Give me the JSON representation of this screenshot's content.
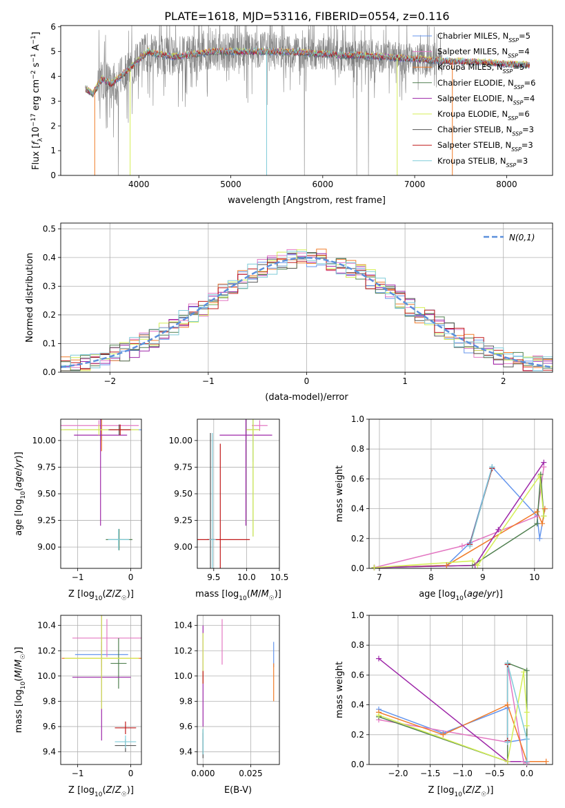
{
  "figure": {
    "title": "PLATE=1618, MJD=53116, FIBERID=0554, z=0.116"
  },
  "model_colors": [
    "#6495ed",
    "#e377c2",
    "#f07b28",
    "#4f7f4f",
    "#9d26a8",
    "#d4ee55",
    "#555555",
    "#c01818",
    "#7ecbd8"
  ],
  "chart_data": [
    {
      "id": "spectrum",
      "type": "line",
      "xlabel": "wavelength [Angstrom, rest frame]",
      "ylabel": "Flux [f_λ 10^-17 erg cm^-2 s^-1 A^-1]",
      "xlim": [
        3150,
        8500
      ],
      "ylim": [
        0,
        6.05
      ],
      "xticks": [
        4000,
        5000,
        6000,
        7000,
        8000
      ],
      "yticks": [
        0,
        1,
        2,
        3,
        4,
        5,
        6
      ],
      "grid": false,
      "legend": "upper-right",
      "data_color": "#808080",
      "data_range": [
        3420,
        8250
      ],
      "continuum": {
        "x": [
          3420,
          3500,
          3600,
          3700,
          3800,
          3900,
          4000,
          4100,
          4200,
          4400,
          4600,
          4800,
          5000,
          5200,
          5400,
          5600,
          5800,
          6000,
          6200,
          6400,
          6600,
          6800,
          7000,
          7200,
          7400,
          7600,
          7800,
          8000,
          8250
        ],
        "y": [
          3.5,
          3.3,
          3.9,
          3.7,
          4.0,
          4.3,
          4.7,
          5.0,
          4.9,
          4.8,
          4.9,
          5.0,
          5.0,
          5.0,
          5.0,
          5.0,
          4.95,
          4.9,
          4.85,
          4.85,
          4.8,
          4.75,
          4.7,
          4.65,
          4.6,
          4.6,
          4.55,
          4.5,
          4.45
        ]
      },
      "series": [
        {
          "name": "Chabrier MILES, N_SSP=5"
        },
        {
          "name": "Salpeter MILES, N_SSP=4"
        },
        {
          "name": "Kroupa MILES, N_SSP=5"
        },
        {
          "name": "Chabrier ELODIE, N_SSP=6"
        },
        {
          "name": "Salpeter ELODIE, N_SSP=4"
        },
        {
          "name": "Kroupa ELODIE, N_SSP=6"
        },
        {
          "name": "Chabrier STELIB, N_SSP=3"
        },
        {
          "name": "Salpeter STELIB, N_SSP=3"
        },
        {
          "name": "Kroupa STELIB, N_SSP=3"
        }
      ]
    },
    {
      "id": "residuals",
      "type": "histogram",
      "xlabel": "(data-model)/error",
      "ylabel": "Normed distribution",
      "xlim": [
        -2.5,
        2.5
      ],
      "ylim": [
        0,
        0.52
      ],
      "xticks": [
        -2,
        -1,
        0,
        1,
        2
      ],
      "yticks": [
        0.0,
        0.1,
        0.2,
        0.3,
        0.4,
        0.5
      ],
      "grid": true,
      "legend": "upper-right",
      "gaussian": {
        "name": "N(0,1)",
        "color": "#5b8fdb",
        "mu": 0,
        "sigma": 1
      },
      "bin_width": 0.1,
      "x_start": -2.5
    },
    {
      "id": "age-vs-Z",
      "type": "errorbar",
      "xlabel": "Z [log10(Z/Z☉)]",
      "ylabel": "age [log10(age/yr)]",
      "xlim": [
        -1.32,
        0.2
      ],
      "ylim": [
        8.8,
        10.2
      ],
      "xticks": [
        -1,
        0
      ],
      "yticks": [
        9.0,
        9.25,
        9.5,
        9.75,
        10.0
      ],
      "grid": true,
      "points": [
        {
          "model": 0,
          "x": -0.55,
          "xerr": 0.75,
          "y": 10.1,
          "yerr": 0.1
        },
        {
          "model": 1,
          "x": -0.6,
          "xerr": 0.75,
          "y": 10.14,
          "yerr": 0.05
        },
        {
          "model": 2,
          "x": -0.55,
          "xerr": 0.7,
          "y": 10.1,
          "yerr": 0.2
        },
        {
          "model": 3,
          "x": -0.22,
          "xerr": 0.25,
          "y": 9.07,
          "yerr": 0.1
        },
        {
          "model": 4,
          "x": -0.57,
          "xerr": 0.5,
          "y": 10.05,
          "yerr": 0.85
        },
        {
          "model": 5,
          "x": -0.6,
          "xerr": 0.75,
          "y": 10.1,
          "yerr": 0.05
        },
        {
          "model": 6,
          "x": -0.22,
          "xerr": 0.2,
          "y": 10.1,
          "yerr": 0.05
        },
        {
          "model": 7,
          "x": -0.2,
          "xerr": 0.2,
          "y": 10.1,
          "yerr": 0.05
        },
        {
          "model": 8,
          "x": -0.23,
          "xerr": 0.2,
          "y": 9.07,
          "yerr": 0.1
        }
      ]
    },
    {
      "id": "age-vs-mass",
      "type": "errorbar",
      "xlabel": "mass [log10(M/M☉)]",
      "ylabel": "",
      "xlim": [
        9.25,
        10.5
      ],
      "ylim": [
        8.8,
        10.2
      ],
      "xticks": [
        9.5,
        10.0,
        10.5
      ],
      "yticks": [
        9.0,
        9.25,
        9.5,
        9.75,
        10.0
      ],
      "grid": true,
      "points": [
        {
          "model": 0,
          "x": 10.1,
          "xerr": 0.1,
          "y": 10.1,
          "yerr": 0.3
        },
        {
          "model": 1,
          "x": 10.2,
          "xerr": 0.12,
          "y": 10.14,
          "yerr": 0.05
        },
        {
          "model": 2,
          "x": 10.1,
          "xerr": 0.1,
          "y": 10.1,
          "yerr": 0.05
        },
        {
          "model": 3,
          "x": 10.1,
          "xerr": 0.1,
          "y": 10.1,
          "yerr": 1.0
        },
        {
          "model": 4,
          "x": 9.99,
          "xerr": 0.4,
          "y": 10.05,
          "yerr": 0.85
        },
        {
          "model": 5,
          "x": 10.1,
          "xerr": 0.1,
          "y": 10.1,
          "yerr": 1.0
        },
        {
          "model": 6,
          "x": 9.45,
          "xerr": 0.05,
          "y": 9.07,
          "yerr": 1.0
        },
        {
          "model": 7,
          "x": 9.6,
          "xerr": 0.45,
          "y": 9.07,
          "yerr": 0.9
        },
        {
          "model": 8,
          "x": 9.48,
          "xerr": 0.05,
          "y": 9.07,
          "yerr": 1.0
        }
      ]
    },
    {
      "id": "weight-vs-age",
      "type": "line",
      "xlabel": "age [log10(age/yr)]",
      "ylabel": "mass weight",
      "xlim": [
        6.8,
        10.35
      ],
      "ylim": [
        0,
        1.0
      ],
      "xticks": [
        7,
        8,
        9,
        10
      ],
      "yticks": [
        0.0,
        0.2,
        0.4,
        0.6,
        0.8,
        1.0
      ],
      "grid": true,
      "series": [
        {
          "model": 0,
          "x": [
            6.9,
            8.3,
            8.75,
            9.18,
            10.05,
            10.1,
            10.2
          ],
          "y": [
            0.005,
            0.02,
            0.17,
            0.68,
            0.35,
            0.2,
            0.4
          ]
        },
        {
          "model": 1,
          "x": [
            6.9,
            8.6,
            10.05,
            10.18
          ],
          "y": [
            0.005,
            0.15,
            0.35,
            0.68
          ]
        },
        {
          "model": 2,
          "x": [
            6.9,
            8.3,
            10.05,
            10.15,
            10.2
          ],
          "y": [
            0.005,
            0.02,
            0.38,
            0.3,
            0.4
          ]
        },
        {
          "model": 3,
          "x": [
            6.9,
            8.8,
            10.05,
            10.12,
            10.18
          ],
          "y": [
            0.005,
            0.02,
            0.3,
            0.63,
            0.35
          ]
        },
        {
          "model": 4,
          "x": [
            6.9,
            8.85,
            9.3,
            10.18
          ],
          "y": [
            0.005,
            0.02,
            0.26,
            0.71
          ]
        },
        {
          "model": 5,
          "x": [
            6.9,
            8.8,
            8.9,
            10.1,
            10.18
          ],
          "y": [
            0.005,
            0.05,
            0.02,
            0.62,
            0.35
          ]
        },
        {
          "model": 6,
          "x": [
            8.75,
            9.18
          ],
          "y": [
            0.16,
            0.67
          ]
        },
        {
          "model": 7,
          "x": [
            8.75,
            9.18
          ],
          "y": [
            0.16,
            0.67
          ]
        },
        {
          "model": 8,
          "x": [
            8.75,
            9.18
          ],
          "y": [
            0.15,
            0.68
          ]
        }
      ]
    },
    {
      "id": "mass-vs-Z",
      "type": "errorbar",
      "xlabel": "Z [log10(Z/Z☉)]",
      "ylabel": "mass [log10(M/M☉)]",
      "xlim": [
        -1.32,
        0.2
      ],
      "ylim": [
        9.3,
        10.48
      ],
      "xticks": [
        -1,
        0
      ],
      "yticks": [
        9.4,
        9.6,
        9.8,
        10.0,
        10.2,
        10.4
      ],
      "grid": true,
      "points": [
        {
          "model": 0,
          "x": -0.55,
          "xerr": 0.5,
          "y": 10.17,
          "yerr": 0.1
        },
        {
          "model": 1,
          "x": -0.45,
          "xerr": 0.65,
          "y": 10.3,
          "yerr": 0.15
        },
        {
          "model": 2,
          "x": -0.55,
          "xerr": 0.75,
          "y": 10.14,
          "yerr": 0.1
        },
        {
          "model": 3,
          "x": -0.23,
          "xerr": 0.15,
          "y": 10.1,
          "yerr": 0.2
        },
        {
          "model": 4,
          "x": -0.55,
          "xerr": 0.55,
          "y": 9.99,
          "yerr": 0.5
        },
        {
          "model": 5,
          "x": -0.55,
          "xerr": 0.7,
          "y": 10.14,
          "yerr": 0.4
        },
        {
          "model": 6,
          "x": -0.1,
          "xerr": 0.2,
          "y": 9.45,
          "yerr": 0.05
        },
        {
          "model": 7,
          "x": -0.1,
          "xerr": 0.2,
          "y": 9.59,
          "yerr": 0.05
        },
        {
          "model": 8,
          "x": -0.1,
          "xerr": 0.2,
          "y": 9.48,
          "yerr": 0.05
        }
      ]
    },
    {
      "id": "mass-vs-ebv",
      "type": "errorbar",
      "xlabel": "E(B-V)",
      "ylabel": "",
      "xlim": [
        -0.003,
        0.04
      ],
      "ylim": [
        9.3,
        10.48
      ],
      "xticks": [
        0.0,
        0.025
      ],
      "xticklabels": [
        "0.000",
        "0.025"
      ],
      "yticks": [
        9.4,
        9.6,
        9.8,
        10.0,
        10.2,
        10.4
      ],
      "grid": true,
      "points": [
        {
          "model": 0,
          "x": 0.037,
          "xerr": 0,
          "y": 10.17,
          "yerr": 0.1
        },
        {
          "model": 1,
          "x": 0.01,
          "xerr": 0,
          "y": 10.27,
          "yerr": 0.18
        },
        {
          "model": 2,
          "x": 0.037,
          "xerr": 0,
          "y": 9.95,
          "yerr": 0.15
        },
        {
          "model": 3,
          "x": 0.0,
          "xerr": 0,
          "y": 9.48,
          "yerr": 0.1
        },
        {
          "model": 4,
          "x": 0.0,
          "xerr": 0,
          "y": 10.0,
          "yerr": 0.4
        },
        {
          "model": 5,
          "x": 0.0,
          "xerr": 0,
          "y": 10.14,
          "yerr": 0.2
        },
        {
          "model": 6,
          "x": 0.0,
          "xerr": 0,
          "y": 9.45,
          "yerr": 0.1
        },
        {
          "model": 7,
          "x": 0.0,
          "xerr": 0,
          "y": 9.99,
          "yerr": 0.05
        },
        {
          "model": 8,
          "x": 0.0,
          "xerr": 0,
          "y": 9.48,
          "yerr": 0.1
        }
      ]
    },
    {
      "id": "weight-vs-Z",
      "type": "line",
      "xlabel": "Z [log10(Z/Z☉)]",
      "ylabel": "mass weight",
      "xlim": [
        -2.45,
        0.4
      ],
      "ylim": [
        0,
        1.0
      ],
      "xticks": [
        -2.0,
        -1.5,
        -1.0,
        -0.5,
        0.0
      ],
      "xticklabels": [
        "−2.0",
        "−1.5",
        "−1.0",
        "−0.5",
        "0.0"
      ],
      "yticks": [
        0.0,
        0.2,
        0.4,
        0.6,
        0.8,
        1.0
      ],
      "grid": true,
      "series": [
        {
          "model": 0,
          "x": [
            -2.3,
            -1.3,
            -0.3,
            -0.3,
            0.0,
            0.0
          ],
          "y": [
            0.37,
            0.21,
            0.38,
            0.15,
            0.17,
            0.02
          ]
        },
        {
          "model": 1,
          "x": [
            -2.3,
            -0.3,
            -0.3,
            -0.05,
            0.0
          ],
          "y": [
            0.3,
            0.15,
            0.67,
            0.02,
            0.01
          ]
        },
        {
          "model": 2,
          "x": [
            -2.3,
            -1.3,
            -0.3,
            0.0,
            0.3
          ],
          "y": [
            0.35,
            0.2,
            0.4,
            0.02,
            0.02
          ]
        },
        {
          "model": 3,
          "x": [
            -2.3,
            -0.3,
            -0.3,
            0.0,
            0.0
          ],
          "y": [
            0.32,
            0.02,
            0.68,
            0.63,
            0.02
          ]
        },
        {
          "model": 4,
          "x": [
            -2.3,
            -0.3,
            0.0
          ],
          "y": [
            0.71,
            0.02,
            0.02
          ]
        },
        {
          "model": 5,
          "x": [
            -2.3,
            -0.3,
            -0.05,
            0.0,
            0.0
          ],
          "y": [
            0.33,
            0.02,
            0.62,
            0.35,
            0.26
          ]
        },
        {
          "model": 6,
          "x": [
            -0.3,
            -0.3
          ],
          "y": [
            0.16,
            0.67
          ]
        },
        {
          "model": 7,
          "x": [
            -0.3,
            -0.3
          ],
          "y": [
            0.16,
            0.67
          ]
        },
        {
          "model": 8,
          "x": [
            -0.3,
            -0.3,
            0.0,
            0.0
          ],
          "y": [
            0.15,
            0.68,
            0.17,
            0.02
          ]
        }
      ]
    }
  ]
}
